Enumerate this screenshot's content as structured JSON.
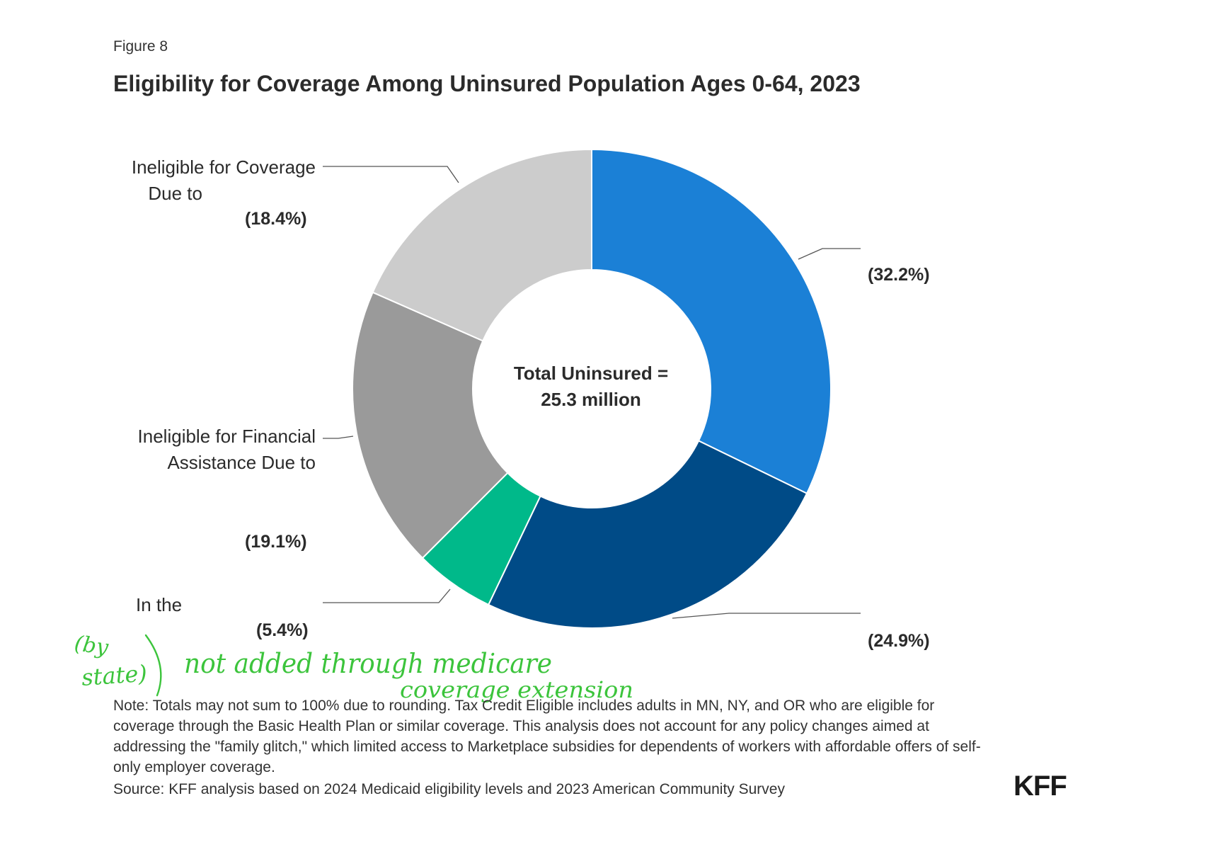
{
  "figure_label": "Figure 8",
  "title": "Eligibility for Coverage Among Uninsured Population Ages 0-64, 2023",
  "center_text": [
    "Total Uninsured =",
    "25.3 million"
  ],
  "colors": {
    "blue": "#1b80d6",
    "dark_blue": "#004b87",
    "green": "#00b98a",
    "dark_gray": "#9a9a9a",
    "light_gray": "#cccccc",
    "handwriting_green": "#3cc43c"
  },
  "chart_data": {
    "type": "pie",
    "donut": true,
    "title": "Eligibility for Coverage Among Uninsured Population Ages 0-64, 2023",
    "slices": [
      {
        "value": 32.2,
        "label_text": "(32.2%)",
        "label_lines": [],
        "color": "#1b80d6"
      },
      {
        "value": 24.9,
        "label_text": "(24.9%)",
        "label_lines": [],
        "color": "#004b87"
      },
      {
        "value": 5.4,
        "label_text": "(5.4%)",
        "label_lines": [
          "In the"
        ],
        "color": "#00b98a"
      },
      {
        "value": 19.1,
        "label_text": "(19.1%)",
        "label_lines": [
          "Ineligible for Financial",
          "Assistance Due to"
        ],
        "color": "#9a9a9a"
      },
      {
        "value": 18.4,
        "label_text": "(18.4%)",
        "label_lines": [
          "Ineligible for Coverage",
          "Due to"
        ],
        "color": "#cccccc"
      }
    ],
    "total": "25.3 million"
  },
  "annotations": {
    "handwritten_left": [
      "(by",
      "state)"
    ],
    "handwritten_main": "not added through medicare",
    "handwritten_sub": "coverage extension"
  },
  "note": "Note: Totals may not sum to 100% due to rounding. Tax Credit Eligible includes adults in MN, NY, and OR who are eligible for coverage through the Basic Health Plan or similar coverage. This analysis does not account for any policy changes aimed at addressing the \"family glitch,\" which limited access to Marketplace subsidies for dependents of workers with affordable offers of self-only employer coverage.",
  "source": "Source: KFF analysis based on 2024 Medicaid eligibility levels and 2023 American Community Survey",
  "logo": "KFF"
}
